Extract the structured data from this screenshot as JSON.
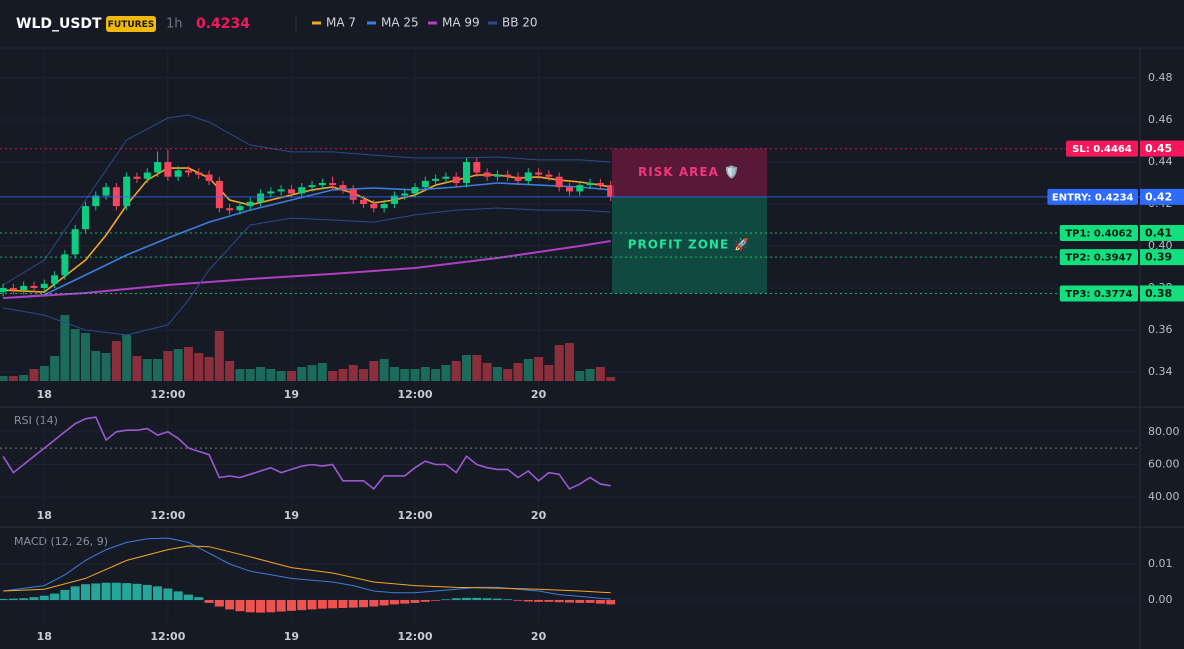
{
  "header": {
    "symbol": "WLD_USDT",
    "badge": "FUTURES",
    "interval": "1h",
    "price": "0.4234"
  },
  "chart_data": [
    {
      "type": "candlestick",
      "xlim": [
        -0.3,
        110.4
      ],
      "ylim": [
        0.3276,
        0.4943
      ],
      "xticks": [
        {
          "value": 4,
          "label": "18"
        },
        {
          "value": 16,
          "label": "12:00"
        },
        {
          "value": 28,
          "label": "19"
        },
        {
          "value": 40,
          "label": "12:00"
        },
        {
          "value": 52,
          "label": "20"
        }
      ],
      "yticks": [
        0.48,
        0.46,
        0.44,
        0.42,
        {
          "value": 0.4,
          "label": "0.40"
        },
        0.38,
        0.36,
        0.34
      ],
      "grid": true,
      "up_color": "#0ecb81",
      "down_color": "#f6465d",
      "open": [
        0.378,
        0.38,
        0.379,
        0.381,
        0.38,
        0.382,
        0.386,
        0.396,
        0.408,
        0.419,
        0.424,
        0.428,
        0.419,
        0.433,
        0.432,
        0.435,
        0.44,
        0.433,
        0.436,
        0.435,
        0.434,
        0.431,
        0.418,
        0.417,
        0.419,
        0.421,
        0.425,
        0.426,
        0.427,
        0.425,
        0.428,
        0.429,
        0.43,
        0.429,
        0.427,
        0.422,
        0.42,
        0.418,
        0.42,
        0.424,
        0.425,
        0.428,
        0.431,
        0.432,
        0.433,
        0.43,
        0.44,
        0.435,
        0.433,
        0.434,
        0.433,
        0.431,
        0.435,
        0.434,
        0.433,
        0.428,
        0.426,
        0.429,
        0.43,
        0.429
      ],
      "high": [
        0.382,
        0.382,
        0.383,
        0.383,
        0.384,
        0.388,
        0.398,
        0.41,
        0.421,
        0.426,
        0.43,
        0.43,
        0.435,
        0.435,
        0.437,
        0.445,
        0.446,
        0.438,
        0.438,
        0.437,
        0.436,
        0.433,
        0.42,
        0.421,
        0.423,
        0.427,
        0.428,
        0.429,
        0.429,
        0.43,
        0.431,
        0.432,
        0.433,
        0.431,
        0.429,
        0.424,
        0.422,
        0.422,
        0.426,
        0.427,
        0.43,
        0.433,
        0.434,
        0.435,
        0.435,
        0.442,
        0.442,
        0.437,
        0.436,
        0.436,
        0.435,
        0.437,
        0.437,
        0.436,
        0.435,
        0.43,
        0.431,
        0.432,
        0.432,
        0.431
      ],
      "low": [
        0.376,
        0.377,
        0.377,
        0.378,
        0.378,
        0.38,
        0.384,
        0.394,
        0.406,
        0.417,
        0.422,
        0.417,
        0.417,
        0.43,
        0.43,
        0.433,
        0.431,
        0.431,
        0.433,
        0.432,
        0.429,
        0.416,
        0.415,
        0.415,
        0.417,
        0.419,
        0.423,
        0.424,
        0.423,
        0.423,
        0.426,
        0.427,
        0.427,
        0.425,
        0.42,
        0.418,
        0.416,
        0.416,
        0.418,
        0.422,
        0.423,
        0.426,
        0.429,
        0.43,
        0.428,
        0.428,
        0.433,
        0.431,
        0.431,
        0.431,
        0.429,
        0.429,
        0.432,
        0.431,
        0.426,
        0.424,
        0.424,
        0.427,
        0.427,
        0.4214
      ],
      "close": [
        0.38,
        0.379,
        0.381,
        0.38,
        0.382,
        0.386,
        0.396,
        0.408,
        0.419,
        0.424,
        0.428,
        0.419,
        0.433,
        0.432,
        0.435,
        0.44,
        0.433,
        0.436,
        0.435,
        0.434,
        0.431,
        0.418,
        0.417,
        0.419,
        0.421,
        0.425,
        0.426,
        0.427,
        0.425,
        0.428,
        0.429,
        0.43,
        0.429,
        0.427,
        0.422,
        0.42,
        0.418,
        0.42,
        0.424,
        0.425,
        0.428,
        0.431,
        0.432,
        0.433,
        0.43,
        0.44,
        0.435,
        0.433,
        0.434,
        0.433,
        0.431,
        0.435,
        0.434,
        0.433,
        0.428,
        0.426,
        0.429,
        0.43,
        0.429,
        0.4234
      ],
      "volume": {
        "ylim": [
          0,
          200
        ],
        "up_color": "#1b6a5c",
        "down_color": "#8c2f3c",
        "values": [
          5,
          5,
          6,
          12,
          15,
          25,
          66,
          52,
          48,
          30,
          28,
          40,
          46,
          25,
          22,
          22,
          30,
          32,
          34,
          28,
          24,
          50,
          20,
          12,
          12,
          14,
          12,
          10,
          10,
          14,
          16,
          18,
          10,
          12,
          16,
          12,
          20,
          22,
          14,
          12,
          12,
          14,
          12,
          16,
          20,
          26,
          26,
          18,
          14,
          12,
          18,
          22,
          24,
          16,
          36,
          38,
          10,
          12,
          14,
          4
        ]
      },
      "series": [
        {
          "name": "MA 7",
          "color": "#f5a623",
          "x": [
            0,
            4,
            8,
            10,
            12,
            14,
            16,
            18,
            20,
            22,
            24,
            26,
            28,
            30,
            32,
            34,
            36,
            38,
            40,
            42,
            44,
            46,
            48,
            50,
            52,
            54,
            56,
            58,
            59
          ],
          "values": [
            0.379,
            0.3781,
            0.3933,
            0.4052,
            0.4195,
            0.4314,
            0.4371,
            0.4371,
            0.4324,
            0.4219,
            0.4195,
            0.4219,
            0.4243,
            0.4267,
            0.4281,
            0.4252,
            0.4205,
            0.4219,
            0.4243,
            0.429,
            0.4314,
            0.4338,
            0.4338,
            0.4324,
            0.4329,
            0.4314,
            0.4305,
            0.429,
            0.4281
          ]
        },
        {
          "name": "MA 25",
          "color": "#3b7ddd",
          "x": [
            0,
            4,
            8,
            12,
            16,
            20,
            24,
            28,
            32,
            36,
            40,
            44,
            48,
            52,
            56,
            59
          ],
          "values": [
            0.3752,
            0.3767,
            0.3862,
            0.3957,
            0.4038,
            0.4114,
            0.4171,
            0.4219,
            0.4267,
            0.4276,
            0.4267,
            0.4281,
            0.43,
            0.429,
            0.4281,
            0.4267
          ]
        },
        {
          "name": "MA 99",
          "color": "#b03fc4",
          "x": [
            0,
            8,
            16,
            24,
            32,
            40,
            48,
            56,
            59
          ],
          "values": [
            0.3752,
            0.3776,
            0.3814,
            0.3843,
            0.3867,
            0.3895,
            0.3943,
            0.4,
            0.4024
          ]
        },
        {
          "name": "BB 20",
          "color": "#2d4a8a",
          "x": [
            0,
            4,
            8,
            12,
            16,
            18,
            20,
            24,
            28,
            32,
            36,
            40,
            44,
            48,
            52,
            56,
            59
          ],
          "upper": [
            0.3814,
            0.3933,
            0.4219,
            0.4505,
            0.461,
            0.4624,
            0.459,
            0.4481,
            0.4448,
            0.4448,
            0.4433,
            0.4419,
            0.4419,
            0.4424,
            0.441,
            0.441,
            0.44
          ],
          "lower": [
            0.3705,
            0.3671,
            0.36,
            0.3576,
            0.3624,
            0.3743,
            0.3886,
            0.41,
            0.4133,
            0.4124,
            0.4114,
            0.4148,
            0.4171,
            0.4181,
            0.4171,
            0.4171,
            0.4162
          ]
        }
      ],
      "levels": [
        {
          "label": "SL: 0.4464",
          "value": 0.4464,
          "axis_label": "0.45",
          "color": "#f5175b",
          "text_color": "#ffffff",
          "dashed": true
        },
        {
          "label": "ENTRY: 0.4234",
          "value": 0.4234,
          "axis_label": "0.42",
          "color": "#2f6bff",
          "text_color": "#ffffff",
          "dashed": false
        },
        {
          "label": "TP1: 0.4062",
          "value": 0.4062,
          "axis_label": "0.41",
          "color": "#12e07f",
          "text_color": "#0b1a12",
          "dashed": true
        },
        {
          "label": "TP2: 0.3947",
          "value": 0.3947,
          "axis_label": "0.39",
          "color": "#12e07f",
          "text_color": "#0b1a12",
          "dashed": true
        },
        {
          "label": "TP3: 0.3774",
          "value": 0.3774,
          "axis_label": "0.38",
          "color": "#12e07f",
          "text_color": "#0b1a12",
          "dashed": true
        }
      ],
      "zones": [
        {
          "label": "RISK AREA 🛡️",
          "from": 0.4464,
          "to": 0.4234,
          "color": "#6e1a3c",
          "text_color": "#f0367a"
        },
        {
          "label": "PROFIT ZONE 🚀",
          "from": 0.4234,
          "to": 0.3774,
          "color": "#0f5a48",
          "text_color": "#22e49a"
        }
      ]
    },
    {
      "type": "line",
      "title": "RSI (14)",
      "xlim": [
        -0.3,
        110.4
      ],
      "ylim": [
        27.2,
        94.6
      ],
      "xticks": [
        {
          "value": 4,
          "label": "18"
        },
        {
          "value": 16,
          "label": "12:00"
        },
        {
          "value": 28,
          "label": "19"
        },
        {
          "value": 40,
          "label": "12:00"
        },
        {
          "value": 52,
          "label": "20"
        }
      ],
      "yticks": [
        {
          "value": 80,
          "label": "80.00"
        },
        {
          "value": 60,
          "label": "60.00"
        },
        {
          "value": 40,
          "label": "40.00"
        }
      ],
      "overbought": 70,
      "grid": true,
      "series": [
        {
          "color": "#9b59d0",
          "values": [
            65,
            55,
            60,
            65,
            70,
            75,
            80,
            85,
            88,
            89,
            75,
            80,
            81,
            81,
            82,
            78,
            80,
            76,
            70,
            68,
            66,
            52,
            53,
            52,
            54,
            56,
            58,
            55,
            57,
            59,
            60,
            59,
            60,
            50,
            50,
            50,
            45,
            53,
            53,
            53,
            58,
            62,
            60,
            60,
            55,
            65,
            60,
            58,
            57,
            57,
            52,
            56,
            50,
            55,
            54,
            45,
            48,
            52,
            48,
            47
          ]
        }
      ]
    },
    {
      "type": "macd",
      "title": "MACD (12, 26, 9)",
      "xlim": [
        -0.3,
        110.4
      ],
      "ylim": [
        -0.0061,
        0.02
      ],
      "xticks": [
        {
          "value": 4,
          "label": "18"
        },
        {
          "value": 16,
          "label": "12:00"
        },
        {
          "value": 28,
          "label": "19"
        },
        {
          "value": 40,
          "label": "12:00"
        },
        {
          "value": 52,
          "label": "20"
        }
      ],
      "yticks": [
        0.01,
        {
          "value": 0,
          "label": "0.00"
        }
      ],
      "grid": true,
      "up_color": "#26a69a",
      "down_color": "#ef5350",
      "histogram": [
        0.0003,
        0.0004,
        0.0005,
        0.0008,
        0.0012,
        0.0018,
        0.0028,
        0.0038,
        0.0044,
        0.0046,
        0.0048,
        0.0048,
        0.0047,
        0.0045,
        0.0042,
        0.0038,
        0.0032,
        0.0024,
        0.0015,
        0.0008,
        -0.0008,
        -0.0018,
        -0.0026,
        -0.0031,
        -0.0034,
        -0.0035,
        -0.0034,
        -0.0032,
        -0.003,
        -0.0028,
        -0.0026,
        -0.0024,
        -0.0023,
        -0.0022,
        -0.0021,
        -0.002,
        -0.0018,
        -0.0015,
        -0.0012,
        -0.001,
        -0.0008,
        -0.0005,
        -0.0002,
        0.0002,
        0.0005,
        0.0006,
        0.0006,
        0.0005,
        0.0004,
        0.0002,
        -0.0002,
        -0.0004,
        -0.0005,
        -0.0005,
        -0.0006,
        -0.0007,
        -0.0008,
        -0.0008,
        -0.001,
        -0.0012
      ],
      "series": [
        {
          "color": "#3b7ddd",
          "x": [
            0,
            4,
            6,
            8,
            10,
            12,
            14,
            16,
            18,
            20,
            22,
            24,
            26,
            28,
            30,
            32,
            34,
            36,
            38,
            40,
            42,
            44,
            46,
            48,
            50,
            52,
            54,
            56,
            58,
            59
          ],
          "values": [
            0.0025,
            0.004,
            0.007,
            0.011,
            0.014,
            0.016,
            0.017,
            0.0172,
            0.016,
            0.013,
            0.01,
            0.008,
            0.007,
            0.006,
            0.0055,
            0.005,
            0.004,
            0.0025,
            0.002,
            0.002,
            0.0025,
            0.003,
            0.0035,
            0.0035,
            0.003,
            0.0025,
            0.0015,
            0.001,
            0.0005,
            0.0003
          ]
        },
        {
          "color": "#f5a623",
          "x": [
            0,
            4,
            8,
            12,
            16,
            18,
            20,
            24,
            28,
            32,
            36,
            40,
            44,
            48,
            52,
            56,
            59
          ],
          "values": [
            0.0025,
            0.003,
            0.006,
            0.011,
            0.014,
            0.015,
            0.0148,
            0.012,
            0.009,
            0.0075,
            0.005,
            0.004,
            0.0035,
            0.0033,
            0.003,
            0.0025,
            0.002
          ]
        }
      ]
    }
  ]
}
